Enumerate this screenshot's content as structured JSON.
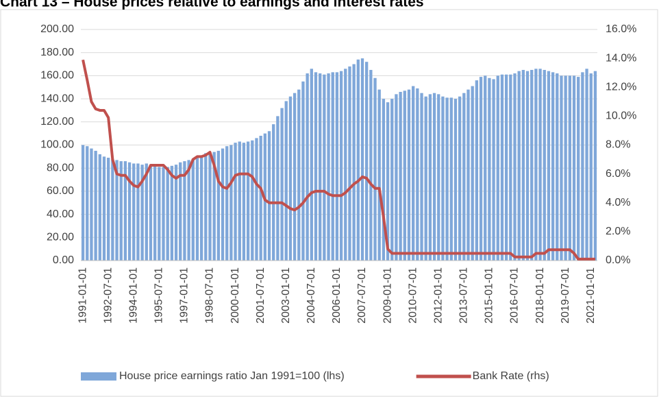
{
  "chart_data": {
    "type": "bar_line",
    "title": "Chart 13 – House prices relative to earnings and interest rates",
    "categories": [
      "1991-01-01",
      null,
      null,
      null,
      null,
      null,
      "1992-07-01",
      null,
      null,
      null,
      null,
      null,
      "1994-01-01",
      null,
      null,
      null,
      null,
      null,
      "1995-07-01",
      null,
      null,
      null,
      null,
      null,
      "1997-01-01",
      null,
      null,
      null,
      null,
      null,
      "1998-07-01",
      null,
      null,
      null,
      null,
      null,
      "2000-01-01",
      null,
      null,
      null,
      null,
      null,
      "2001-07-01",
      null,
      null,
      null,
      null,
      null,
      "2003-01-01",
      null,
      null,
      null,
      null,
      null,
      "2004-07-01",
      null,
      null,
      null,
      null,
      null,
      "2006-01-01",
      null,
      null,
      null,
      null,
      null,
      "2007-07-01",
      null,
      null,
      null,
      null,
      null,
      "2009-01-01",
      null,
      null,
      null,
      null,
      null,
      "2010-07-01",
      null,
      null,
      null,
      null,
      null,
      "2012-01-01",
      null,
      null,
      null,
      null,
      null,
      "2013-07-01",
      null,
      null,
      null,
      null,
      null,
      "2015-01-01",
      null,
      null,
      null,
      null,
      null,
      "2016-07-01",
      null,
      null,
      null,
      null,
      null,
      "2018-01-01",
      null,
      null,
      null,
      null,
      null,
      "2019-07-01",
      null,
      null,
      null,
      null,
      null,
      "2021-01-01",
      null
    ],
    "series": [
      {
        "name": "House price earnings ratio Jan 1991=100 (lhs)",
        "type": "bar",
        "color": "#7fa7d9",
        "values": [
          100,
          99,
          97,
          95,
          92,
          90,
          89,
          88,
          87,
          86,
          86,
          85,
          84,
          84,
          83,
          84,
          83,
          82,
          81,
          81,
          81,
          82,
          83,
          85,
          86,
          87,
          88,
          90,
          91,
          93,
          93,
          94,
          95,
          97,
          99,
          100,
          102,
          103,
          102,
          103,
          104,
          106,
          108,
          110,
          112,
          118,
          125,
          132,
          138,
          142,
          145,
          148,
          155,
          162,
          166,
          163,
          162,
          161,
          162,
          163,
          163,
          164,
          166,
          168,
          170,
          174,
          175,
          172,
          165,
          158,
          148,
          140,
          137,
          140,
          144,
          146,
          147,
          148,
          151,
          149,
          145,
          142,
          144,
          145,
          144,
          142,
          141,
          141,
          140,
          142,
          145,
          148,
          151,
          156,
          159,
          160,
          158,
          157,
          160,
          161,
          161,
          161,
          162,
          164,
          165,
          164,
          165,
          166,
          166,
          165,
          164,
          163,
          162,
          160,
          160,
          160,
          160,
          159,
          163,
          166,
          162,
          164
        ]
      },
      {
        "name": "Bank Rate (rhs)",
        "type": "line",
        "axis": "y2",
        "color": "#c0504d",
        "values": [
          13.9,
          12.5,
          11.0,
          10.5,
          10.4,
          10.4,
          9.9,
          7.0,
          6.0,
          5.9,
          5.9,
          5.5,
          5.2,
          5.1,
          5.5,
          6.0,
          6.6,
          6.6,
          6.6,
          6.6,
          6.3,
          5.9,
          5.7,
          5.9,
          5.9,
          6.3,
          7.0,
          7.2,
          7.2,
          7.3,
          7.5,
          6.6,
          5.5,
          5.1,
          5.0,
          5.4,
          5.9,
          6.0,
          6.0,
          6.0,
          5.8,
          5.3,
          5.0,
          4.2,
          4.0,
          4.0,
          4.0,
          4.0,
          3.8,
          3.6,
          3.5,
          3.7,
          4.0,
          4.4,
          4.7,
          4.8,
          4.8,
          4.8,
          4.6,
          4.5,
          4.5,
          4.5,
          4.7,
          5.0,
          5.3,
          5.5,
          5.8,
          5.7,
          5.3,
          5.0,
          5.0,
          3.0,
          0.8,
          0.5,
          0.5,
          0.5,
          0.5,
          0.5,
          0.5,
          0.5,
          0.5,
          0.5,
          0.5,
          0.5,
          0.5,
          0.5,
          0.5,
          0.5,
          0.5,
          0.5,
          0.5,
          0.5,
          0.5,
          0.5,
          0.5,
          0.5,
          0.5,
          0.5,
          0.5,
          0.5,
          0.5,
          0.5,
          0.25,
          0.25,
          0.25,
          0.25,
          0.25,
          0.5,
          0.5,
          0.5,
          0.75,
          0.75,
          0.75,
          0.75,
          0.75,
          0.75,
          0.5,
          0.1,
          0.1,
          0.1,
          0.1,
          0.1
        ]
      }
    ],
    "ylim": [
      0,
      200
    ],
    "yticks": [
      {
        "value": 0,
        "label": "0.00"
      },
      {
        "value": 20,
        "label": "20.00"
      },
      {
        "value": 40,
        "label": "40.00"
      },
      {
        "value": 60,
        "label": "60.00"
      },
      {
        "value": 80,
        "label": "80.00"
      },
      {
        "value": 100,
        "label": "100.00"
      },
      {
        "value": 120,
        "label": "120.00"
      },
      {
        "value": 140,
        "label": "140.00"
      },
      {
        "value": 160,
        "label": "160.00"
      },
      {
        "value": 180,
        "label": "180.00"
      },
      {
        "value": 200,
        "label": "200.00"
      }
    ],
    "y2lim": [
      0,
      16
    ],
    "y2ticks": [
      {
        "value": 0,
        "label": "0.0%"
      },
      {
        "value": 2,
        "label": "2.0%"
      },
      {
        "value": 4,
        "label": "4.0%"
      },
      {
        "value": 6,
        "label": "6.0%"
      },
      {
        "value": 8,
        "label": "8.0%"
      },
      {
        "value": 10,
        "label": "10.0%"
      },
      {
        "value": 12,
        "label": "12.0%"
      },
      {
        "value": 14,
        "label": "14.0%"
      },
      {
        "value": 16,
        "label": "16.0%"
      }
    ],
    "grid": true,
    "legend": "bottom"
  }
}
